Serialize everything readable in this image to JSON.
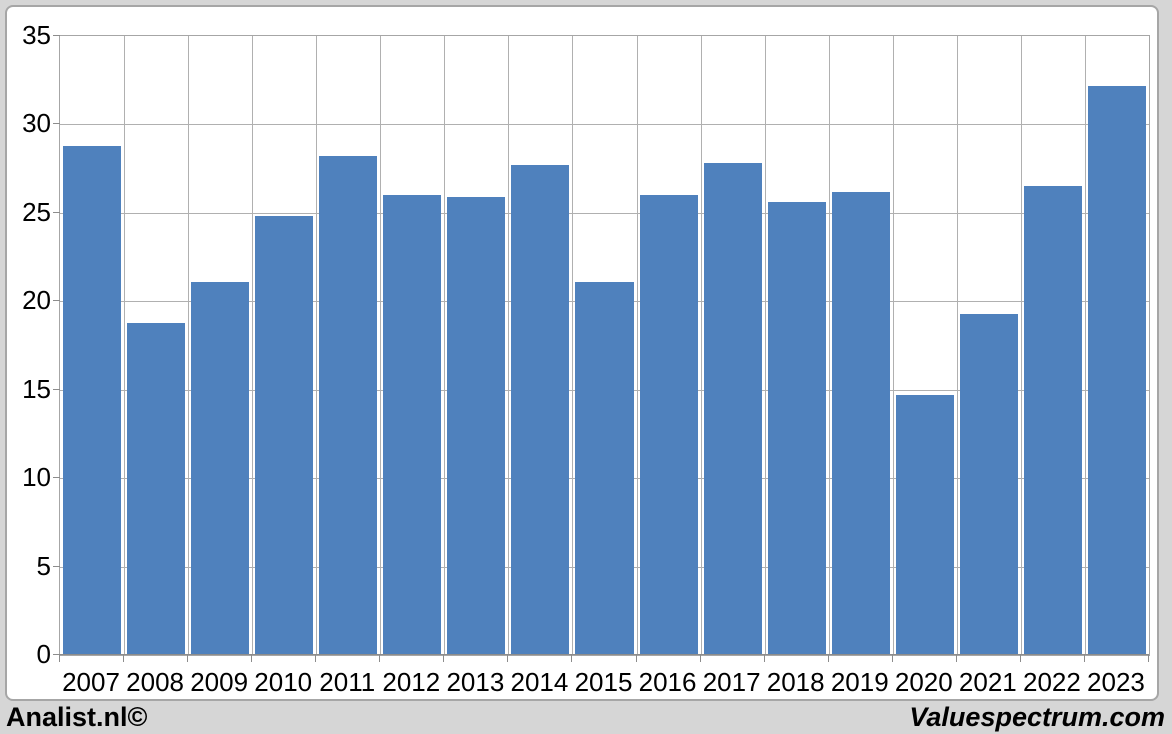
{
  "page": {
    "footer_left": "Analist.nl©",
    "footer_right": "Valuespectrum.com"
  },
  "colors": {
    "bar": "#4f81bd",
    "gridline": "#b0b0b0",
    "axis": "#8c8c8c",
    "chart_border": "#a6a6a6",
    "plot_background": "#ffffff",
    "page_background": "#d6d6d6",
    "text": "#000000"
  },
  "chart_data": {
    "type": "bar",
    "categories": [
      "2007",
      "2008",
      "2009",
      "2010",
      "2011",
      "2012",
      "2013",
      "2014",
      "2015",
      "2016",
      "2017",
      "2018",
      "2019",
      "2020",
      "2021",
      "2022",
      "2023"
    ],
    "values": [
      28.8,
      18.8,
      21.1,
      24.8,
      28.2,
      26.0,
      25.9,
      27.7,
      21.1,
      26.0,
      27.8,
      25.6,
      26.2,
      14.7,
      19.3,
      26.5,
      32.2
    ],
    "title": "",
    "xlabel": "",
    "ylabel": "",
    "ylim": [
      0,
      35
    ],
    "yticks": [
      0,
      5,
      10,
      15,
      20,
      25,
      30,
      35
    ],
    "grid": true,
    "legend": false
  }
}
